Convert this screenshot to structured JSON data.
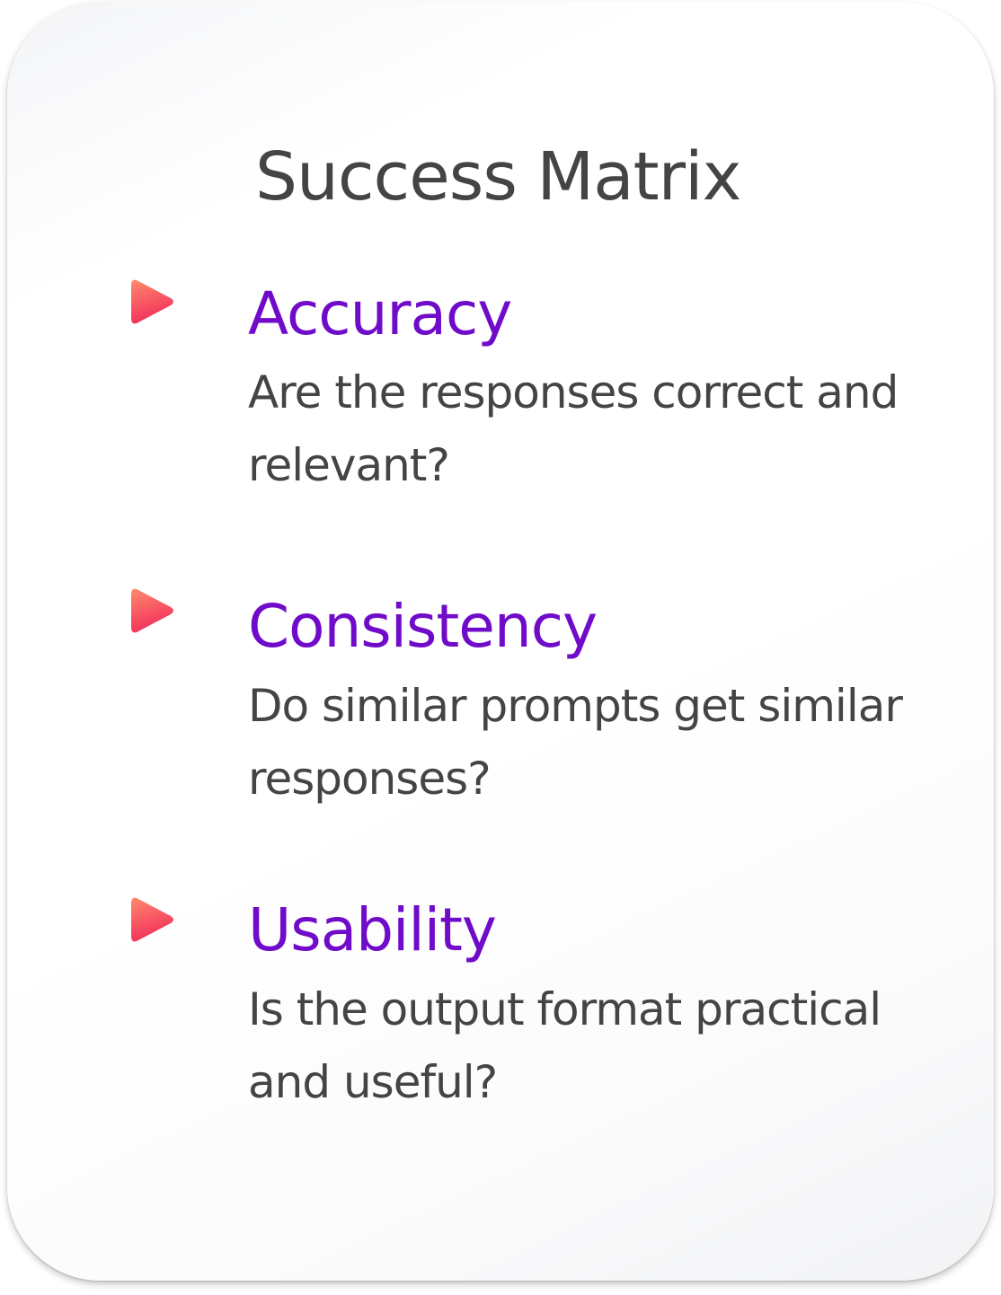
{
  "title": "Success Matrix",
  "icon": "play-arrow-icon",
  "colors": {
    "heading": "#6f0bc9",
    "text": "#444444",
    "arrow_start": "#ff8a6e",
    "arrow_end": "#f2305a"
  },
  "items": [
    {
      "heading": "Accuracy",
      "description": "Are the responses correct and relevant?"
    },
    {
      "heading": "Consistency",
      "description": "Do similar prompts get similar responses?"
    },
    {
      "heading": "Usability",
      "description": "Is the output format practical and useful?"
    }
  ]
}
